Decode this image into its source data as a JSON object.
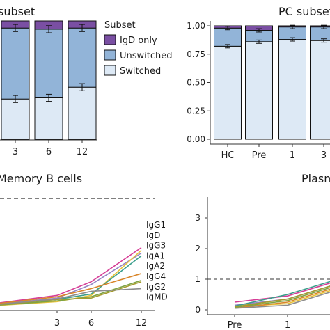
{
  "chart_data": [
    {
      "type": "bar",
      "stacked": true,
      "title": "subset",
      "categories": [
        "3",
        "6",
        "12"
      ],
      "series": [
        {
          "name": "Switched",
          "values": [
            0.34,
            0.35,
            0.44
          ],
          "color": "#dde9f5"
        },
        {
          "name": "Unswitched",
          "values": [
            0.6,
            0.58,
            0.5
          ],
          "color": "#92b4d8"
        },
        {
          "name": "IgD only",
          "values": [
            0.06,
            0.07,
            0.06
          ],
          "color": "#7a4fa3"
        }
      ],
      "error_bars": [
        [
          0.34,
          0.94
        ],
        [
          0.35,
          0.93
        ],
        [
          0.44,
          0.94
        ]
      ],
      "error_size": 0.03,
      "legend": {
        "title": "Subset",
        "placement": "right"
      },
      "ylim": [
        0,
        1
      ]
    },
    {
      "type": "bar",
      "stacked": true,
      "title": "PC subset",
      "categories": [
        "HC",
        "Pre",
        "1",
        "3"
      ],
      "series": [
        {
          "name": "Switched",
          "values": [
            0.82,
            0.86,
            0.88,
            0.87
          ],
          "color": "#dde9f5"
        },
        {
          "name": "Unswitched",
          "values": [
            0.16,
            0.1,
            0.11,
            0.12
          ],
          "color": "#92b4d8"
        },
        {
          "name": "IgD only",
          "values": [
            0.02,
            0.04,
            0.01,
            0.01
          ],
          "color": "#7a4fa3"
        }
      ],
      "error_bars": [
        [
          0.82,
          0.98
        ],
        [
          0.86,
          0.96
        ],
        [
          0.88,
          0.99
        ],
        [
          0.87,
          0.99
        ]
      ],
      "error_size": 0.015,
      "yticks": [
        "0.00",
        "0.25",
        "0.50",
        "0.75",
        "1.00"
      ],
      "ylim": [
        0,
        1
      ]
    },
    {
      "type": "line",
      "title": "Memory B cells",
      "x": [
        "3",
        "6",
        "12"
      ],
      "series": [
        {
          "name": "IgG1",
          "values": [
            0.45,
            0.95,
            2.2
          ],
          "color": "#d63d96"
        },
        {
          "name": "IgD",
          "values": [
            0.35,
            0.85,
            2.0
          ],
          "color": "#9584c4"
        },
        {
          "name": "IgG3",
          "values": [
            0.22,
            0.45,
            2.1
          ],
          "color": "#e6c13a"
        },
        {
          "name": "IgA1",
          "values": [
            0.3,
            0.5,
            1.9
          ],
          "color": "#3a9e8c"
        },
        {
          "name": "IgA2",
          "values": [
            0.4,
            0.7,
            1.25
          ],
          "color": "#d9862b"
        },
        {
          "name": "IgG4",
          "values": [
            0.25,
            0.4,
            1.0
          ],
          "color": "#7ea343"
        },
        {
          "name": "IgG2",
          "values": [
            0.3,
            0.35,
            0.95
          ],
          "color": "#a59b2e"
        },
        {
          "name": "IgMD",
          "values": [
            0.32,
            0.6,
            0.7
          ],
          "color": "#8c8c8c"
        }
      ],
      "reference_line": 4,
      "ylim": [
        0,
        4
      ]
    },
    {
      "type": "line",
      "title": "Plasm",
      "x": [
        "Pre",
        "1"
      ],
      "series": [
        {
          "name": "IgG1",
          "values": [
            0.25,
            0.45
          ],
          "color": "#d63d96"
        },
        {
          "name": "IgD",
          "values": [
            0.15,
            0.35
          ],
          "color": "#9584c4"
        },
        {
          "name": "IgG3",
          "values": [
            0.1,
            0.2
          ],
          "color": "#e6c13a"
        },
        {
          "name": "IgA1",
          "values": [
            0.12,
            0.5
          ],
          "color": "#3a9e8c"
        },
        {
          "name": "IgA2",
          "values": [
            0.05,
            0.25
          ],
          "color": "#d9862b"
        },
        {
          "name": "IgG4",
          "values": [
            0.08,
            0.3
          ],
          "color": "#7ea343"
        },
        {
          "name": "IgG2",
          "values": [
            0.1,
            0.35
          ],
          "color": "#a59b2e"
        },
        {
          "name": "IgMD",
          "values": [
            0.05,
            0.15
          ],
          "color": "#8c8c8c"
        }
      ],
      "yticks": [
        "0",
        "1",
        "2",
        "3"
      ],
      "reference_line": 1,
      "ylim": [
        0,
        3.2
      ]
    }
  ]
}
